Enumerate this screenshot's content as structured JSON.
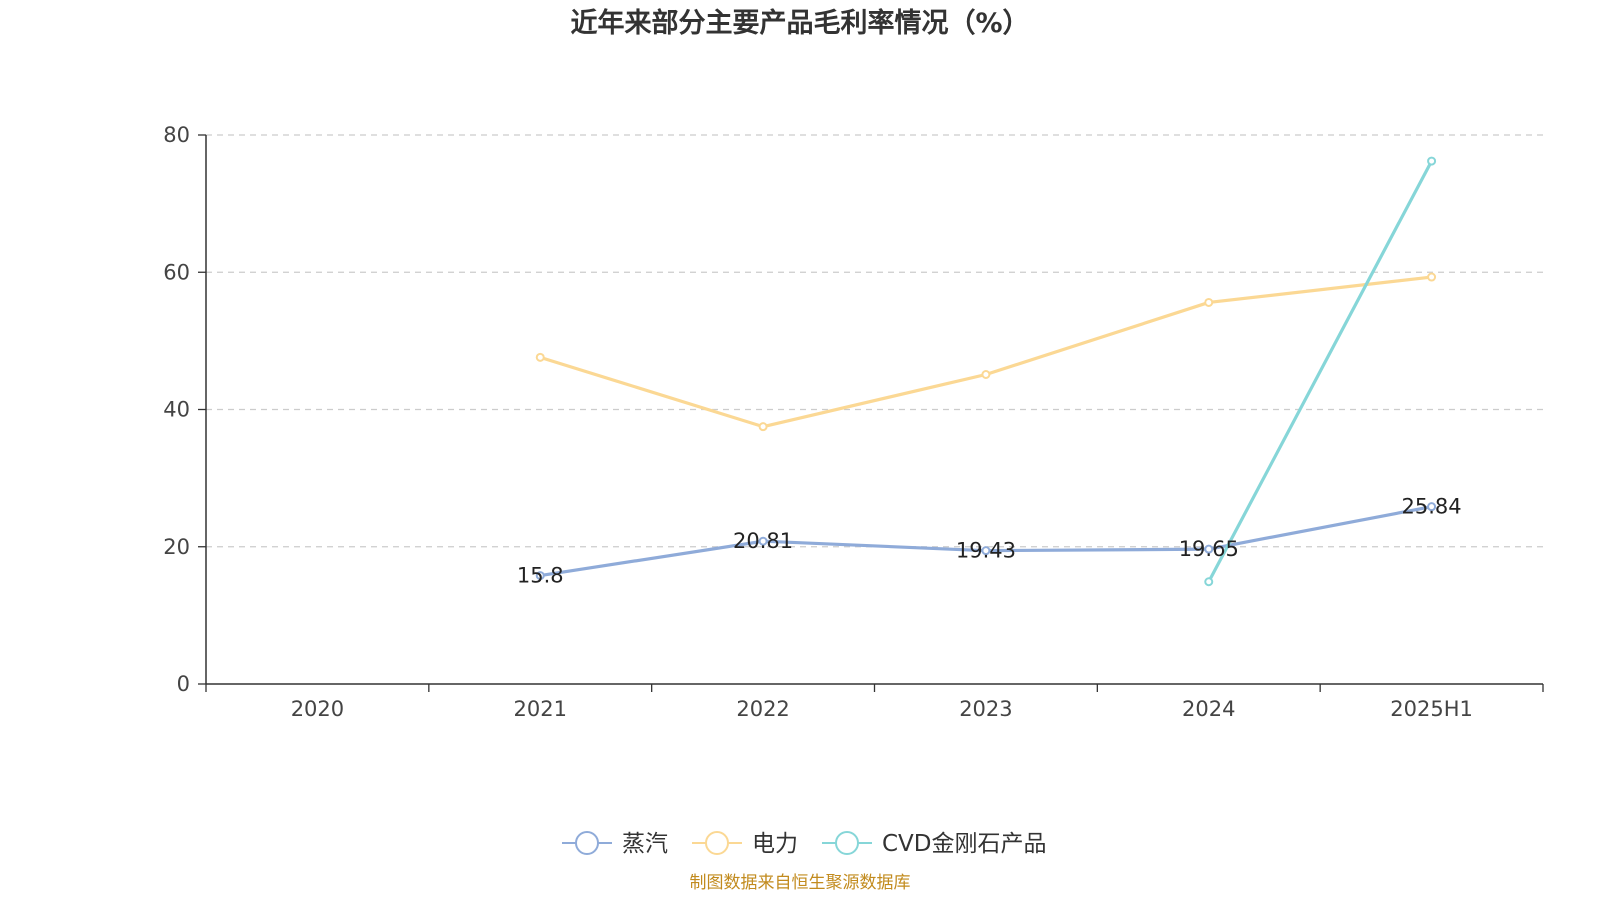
{
  "chart_data": {
    "type": "line",
    "title": "近年来部分主要产品毛利率情况（%）",
    "categories": [
      "2020",
      "2021",
      "2022",
      "2023",
      "2024",
      "2025H1"
    ],
    "ylim": [
      0,
      80
    ],
    "yticks": [
      0,
      20,
      40,
      60,
      80
    ],
    "grid": true,
    "legend_position": "bottom-center",
    "series": [
      {
        "name": "蒸汽",
        "color": "#8fabd9",
        "values": [
          null,
          15.8,
          20.81,
          19.43,
          19.65,
          25.84
        ],
        "labels": [
          null,
          "15.8",
          "20.81",
          "19.43",
          "19.65",
          "25.84"
        ]
      },
      {
        "name": "电力",
        "color": "#fbd894",
        "values": [
          null,
          47.6,
          37.5,
          45.1,
          55.6,
          59.3
        ]
      },
      {
        "name": "CVD金刚石产品",
        "color": "#86d6d8",
        "values": [
          null,
          null,
          null,
          null,
          14.9,
          76.2
        ]
      }
    ]
  },
  "source": "制图数据来自恒生聚源数据库"
}
